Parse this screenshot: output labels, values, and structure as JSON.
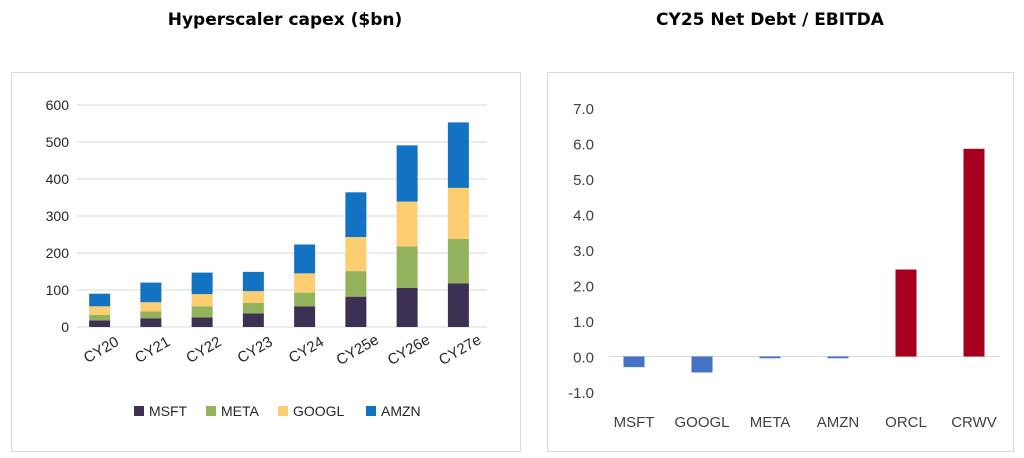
{
  "chart_data": [
    {
      "type": "bar",
      "stacked": true,
      "title": "Hyperscaler capex ($bn)",
      "categories": [
        "CY20",
        "CY21",
        "CY22",
        "CY23",
        "CY24",
        "CY25e",
        "CY26e",
        "CY27e"
      ],
      "series": [
        {
          "name": "MSFT",
          "color": "#3c3153",
          "values": [
            18,
            23,
            26,
            37,
            56,
            82,
            106,
            118
          ]
        },
        {
          "name": "META",
          "color": "#92b35b",
          "values": [
            15,
            19,
            30,
            28,
            37,
            69,
            112,
            120
          ]
        },
        {
          "name": "GOOGL",
          "color": "#fdcd72",
          "values": [
            23,
            25,
            33,
            32,
            52,
            92,
            121,
            138
          ]
        },
        {
          "name": "AMZN",
          "color": "#1373c2",
          "values": [
            34,
            53,
            58,
            52,
            78,
            121,
            152,
            177
          ]
        }
      ],
      "yticks": [
        0,
        100,
        200,
        300,
        400,
        500,
        600
      ],
      "ylim": [
        0,
        600
      ],
      "legend": "bottom",
      "grid": true
    },
    {
      "type": "bar",
      "title": "CY25 Net Debt / EBITDA",
      "categories": [
        "MSFT",
        "GOOGL",
        "META",
        "AMZN",
        "ORCL",
        "CRWV"
      ],
      "values": [
        -0.3,
        -0.45,
        -0.05,
        -0.05,
        2.45,
        5.85
      ],
      "colors": [
        "#4472c4",
        "#4472c4",
        "#4472c4",
        "#4472c4",
        "#a5001e",
        "#a5001e"
      ],
      "yticks": [
        "7.0",
        "6.0",
        "5.0",
        "4.0",
        "3.0",
        "2.0",
        "1.0",
        "0.0",
        "-1.0"
      ],
      "ylim": [
        -1,
        7
      ],
      "grid": false
    }
  ]
}
